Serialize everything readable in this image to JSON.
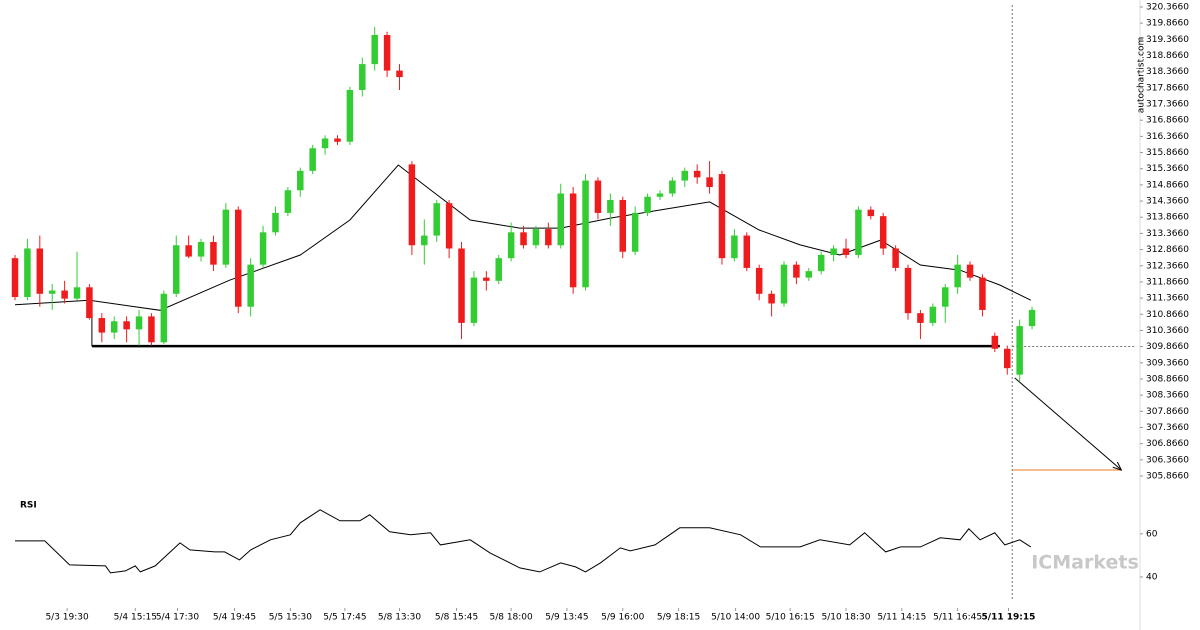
{
  "chart_data": {
    "type": "candlestick",
    "source_text": "autochartist.com",
    "logo_text": "ICMarkets",
    "up_color": "#33cc33",
    "down_color": "#ee1c1c",
    "xlim": [
      0,
      90.3
    ],
    "ylim": [
      305.866,
      320.366
    ],
    "yticks": [
      {
        "value": 305.866,
        "label": "305.8660"
      },
      {
        "value": 306.366,
        "label": "306.3660"
      },
      {
        "value": 306.866,
        "label": "306.8660"
      },
      {
        "value": 307.366,
        "label": "307.3660"
      },
      {
        "value": 307.866,
        "label": "307.8660"
      },
      {
        "value": 308.366,
        "label": "308.3660"
      },
      {
        "value": 308.866,
        "label": "308.8660"
      },
      {
        "value": 309.366,
        "label": "309.3660"
      },
      {
        "value": 309.866,
        "label": "309.8660"
      },
      {
        "value": 310.366,
        "label": "310.3660"
      },
      {
        "value": 310.866,
        "label": "310.8660"
      },
      {
        "value": 311.366,
        "label": "311.3660"
      },
      {
        "value": 311.866,
        "label": "311.8660"
      },
      {
        "value": 312.366,
        "label": "312.3660"
      },
      {
        "value": 312.866,
        "label": "312.8660"
      },
      {
        "value": 313.366,
        "label": "313.3660"
      },
      {
        "value": 313.866,
        "label": "313.8660"
      },
      {
        "value": 314.366,
        "label": "314.3660"
      },
      {
        "value": 314.866,
        "label": "314.8660"
      },
      {
        "value": 315.366,
        "label": "315.3660"
      },
      {
        "value": 315.866,
        "label": "315.8660"
      },
      {
        "value": 316.366,
        "label": "316.3660"
      },
      {
        "value": 316.866,
        "label": "316.8660"
      },
      {
        "value": 317.366,
        "label": "317.3660"
      },
      {
        "value": 317.866,
        "label": "317.8660"
      },
      {
        "value": 318.366,
        "label": "318.3660"
      },
      {
        "value": 318.866,
        "label": "318.8660"
      },
      {
        "value": 319.366,
        "label": "319.3660"
      },
      {
        "value": 319.866,
        "label": "319.8660"
      },
      {
        "value": 320.366,
        "label": "320.3660"
      }
    ],
    "xticks": [
      {
        "value": 4.2,
        "label": "5/3 19:30"
      },
      {
        "value": 9.7,
        "label": "5/4 15:15"
      },
      {
        "value": 13.1,
        "label": "5/4 17:30"
      },
      {
        "value": 17.7,
        "label": "5/4 19:45"
      },
      {
        "value": 22.2,
        "label": "5/5 15:30"
      },
      {
        "value": 26.6,
        "label": "5/5 17:45"
      },
      {
        "value": 31.0,
        "label": "5/8 13:30"
      },
      {
        "value": 35.6,
        "label": "5/8 15:45"
      },
      {
        "value": 40.0,
        "label": "5/8 18:00"
      },
      {
        "value": 44.5,
        "label": "5/9 13:45"
      },
      {
        "value": 49.0,
        "label": "5/9 16:00"
      },
      {
        "value": 53.5,
        "label": "5/9 18:15"
      },
      {
        "value": 58.1,
        "label": "5/10 14:00"
      },
      {
        "value": 62.5,
        "label": "5/10 16:15"
      },
      {
        "value": 67.0,
        "label": "5/10 18:30"
      },
      {
        "value": 71.5,
        "label": "5/11 14:15"
      },
      {
        "value": 76.0,
        "label": "5/11 16:45"
      },
      {
        "value": 80.1,
        "label": "5/11 19:15"
      }
    ],
    "candles": {
      "open": [
        312.6,
        311.4,
        312.9,
        311.5,
        311.6,
        311.35,
        311.7,
        310.75,
        310.3,
        310.65,
        310.4,
        310.8,
        310.0,
        311.5,
        313.0,
        312.65,
        313.1,
        312.4,
        314.1,
        311.1,
        312.4,
        313.4,
        314.0,
        314.7,
        315.3,
        316.0,
        316.3,
        316.2,
        317.8,
        318.6,
        319.5,
        318.4,
        315.5,
        313.0,
        313.3,
        314.3,
        312.9,
        310.6,
        312.0,
        311.9,
        312.6,
        313.4,
        313.0,
        313.5,
        313.0,
        314.6,
        311.7,
        315.0,
        314.0,
        314.4,
        312.8,
        314.0,
        314.5,
        314.6,
        315.0,
        315.3,
        315.1,
        315.2,
        312.6,
        313.3,
        312.3,
        311.5,
        311.2,
        312.4,
        312.0,
        312.2,
        312.7,
        312.9,
        312.7,
        314.1,
        313.9,
        312.9,
        312.3,
        310.9,
        310.6,
        311.1,
        311.7,
        312.4,
        312.0,
        310.2,
        309.8,
        309.0,
        310.5
      ],
      "high": [
        312.7,
        313.2,
        313.3,
        311.8,
        311.9,
        312.8,
        311.8,
        310.9,
        310.8,
        310.8,
        311.0,
        310.9,
        311.6,
        313.3,
        313.3,
        313.2,
        313.3,
        314.3,
        314.2,
        312.6,
        313.6,
        314.2,
        314.8,
        315.4,
        316.1,
        316.4,
        316.4,
        317.9,
        318.8,
        319.75,
        319.6,
        318.6,
        315.6,
        313.8,
        314.4,
        314.4,
        313.1,
        312.2,
        312.2,
        312.7,
        313.7,
        313.6,
        313.6,
        313.7,
        314.9,
        314.8,
        315.2,
        315.1,
        314.6,
        314.5,
        314.2,
        314.6,
        314.7,
        315.1,
        315.4,
        315.5,
        315.6,
        315.3,
        313.5,
        313.4,
        312.4,
        311.6,
        312.5,
        312.5,
        312.3,
        312.8,
        313.0,
        313.2,
        314.2,
        314.2,
        314.0,
        313.0,
        312.4,
        311.0,
        311.2,
        311.8,
        312.7,
        312.5,
        312.1,
        310.3,
        309.9,
        310.7,
        311.1
      ],
      "low": [
        311.3,
        311.3,
        311.1,
        311.0,
        311.2,
        311.3,
        310.7,
        310.0,
        310.1,
        310.0,
        309.9,
        309.9,
        309.95,
        311.4,
        312.6,
        312.5,
        312.2,
        312.3,
        310.9,
        310.8,
        312.3,
        313.3,
        313.9,
        314.5,
        315.2,
        315.8,
        316.1,
        316.1,
        317.6,
        318.4,
        318.2,
        317.8,
        312.7,
        312.4,
        313.1,
        312.6,
        310.1,
        310.5,
        311.6,
        311.8,
        312.5,
        312.9,
        312.9,
        312.9,
        312.9,
        311.5,
        311.6,
        313.8,
        313.6,
        312.6,
        312.7,
        313.9,
        314.4,
        314.5,
        314.8,
        314.9,
        314.6,
        312.4,
        312.5,
        312.2,
        311.3,
        310.8,
        311.1,
        311.8,
        311.9,
        312.1,
        312.5,
        312.6,
        312.6,
        313.8,
        312.7,
        312.2,
        310.7,
        310.1,
        310.5,
        310.6,
        311.5,
        311.9,
        310.8,
        309.7,
        309.0,
        308.8,
        310.4
      ],
      "close": [
        311.4,
        312.9,
        311.5,
        311.6,
        311.35,
        311.7,
        310.75,
        310.3,
        310.65,
        310.4,
        310.8,
        310.0,
        311.5,
        313.0,
        312.65,
        313.1,
        312.4,
        314.1,
        311.1,
        312.4,
        313.4,
        314.0,
        314.7,
        315.3,
        316.0,
        316.3,
        316.2,
        317.8,
        318.6,
        319.5,
        318.4,
        318.2,
        313.0,
        313.3,
        314.3,
        312.9,
        310.6,
        312.0,
        311.9,
        312.6,
        313.4,
        313.0,
        313.5,
        313.0,
        314.6,
        311.7,
        315.0,
        314.0,
        314.4,
        312.8,
        314.0,
        314.5,
        314.6,
        315.0,
        315.3,
        315.1,
        314.8,
        312.6,
        313.3,
        312.3,
        311.5,
        311.2,
        312.4,
        312.0,
        312.2,
        312.7,
        312.9,
        312.7,
        314.1,
        313.9,
        312.9,
        312.3,
        310.9,
        310.6,
        311.1,
        311.7,
        312.4,
        312.0,
        311.0,
        309.8,
        309.2,
        310.5,
        311.0
      ]
    },
    "ma": {
      "x": [
        0,
        6,
        11.7,
        17.3,
        23,
        27,
        30.9,
        33.5,
        36.7,
        40.7,
        44,
        48,
        52,
        56,
        60,
        63.3,
        66.5,
        69.8,
        73,
        76.2,
        79.4,
        81.9
      ],
      "values": [
        311.16,
        311.3,
        310.99,
        311.92,
        312.7,
        313.78,
        315.48,
        314.71,
        313.78,
        313.53,
        313.53,
        313.84,
        314.09,
        314.34,
        313.47,
        313.01,
        312.7,
        313.16,
        312.39,
        312.23,
        311.77,
        311.3
      ]
    },
    "support": {
      "level": 309.88,
      "x": [
        6.2,
        79.4
      ]
    },
    "current_price": 309.87,
    "current_x": 80.4,
    "arrow": {
      "x": [
        80.6,
        89.2
      ],
      "values": [
        308.9,
        306.05
      ]
    },
    "target": {
      "level": 306.05,
      "x": [
        80.4,
        89.2
      ]
    },
    "rsi": {
      "title": "RSI",
      "ylim": [
        27,
        78
      ],
      "yticks": [
        60,
        40
      ],
      "x": [
        0,
        2.4,
        4.4,
        7.3,
        7.7,
        8.9,
        9.7,
        10.1,
        11.3,
        13.3,
        14.1,
        16.1,
        16.9,
        18.1,
        19.0,
        20.6,
        22.2,
        23.0,
        24.6,
        26.2,
        27.8,
        28.6,
        30.2,
        31.9,
        33.5,
        34.3,
        36.7,
        38.3,
        40.7,
        42.3,
        44.0,
        45.2,
        46.0,
        47.2,
        48.8,
        49.6,
        51.6,
        53.6,
        56.0,
        58.5,
        60.1,
        63.3,
        64.9,
        67.3,
        68.5,
        70.2,
        71.4,
        73.0,
        74.6,
        76.2,
        76.9,
        77.8,
        79.0,
        79.8,
        81.0,
        81.9
      ],
      "values": [
        56.74,
        56.74,
        45.58,
        45.12,
        41.86,
        42.79,
        45.12,
        42.33,
        45.12,
        55.81,
        52.56,
        51.63,
        51.63,
        47.91,
        52.56,
        57.21,
        59.53,
        65.12,
        71.16,
        66.05,
        66.05,
        68.84,
        60.93,
        59.53,
        60.47,
        54.88,
        57.21,
        51.16,
        44.19,
        42.33,
        46.51,
        44.65,
        42.33,
        46.51,
        53.49,
        52.09,
        54.88,
        62.79,
        62.79,
        59.53,
        53.95,
        53.95,
        57.21,
        54.88,
        60.47,
        51.63,
        53.95,
        53.95,
        58.14,
        57.21,
        62.33,
        57.21,
        60.47,
        54.88,
        57.21,
        53.95
      ]
    }
  }
}
